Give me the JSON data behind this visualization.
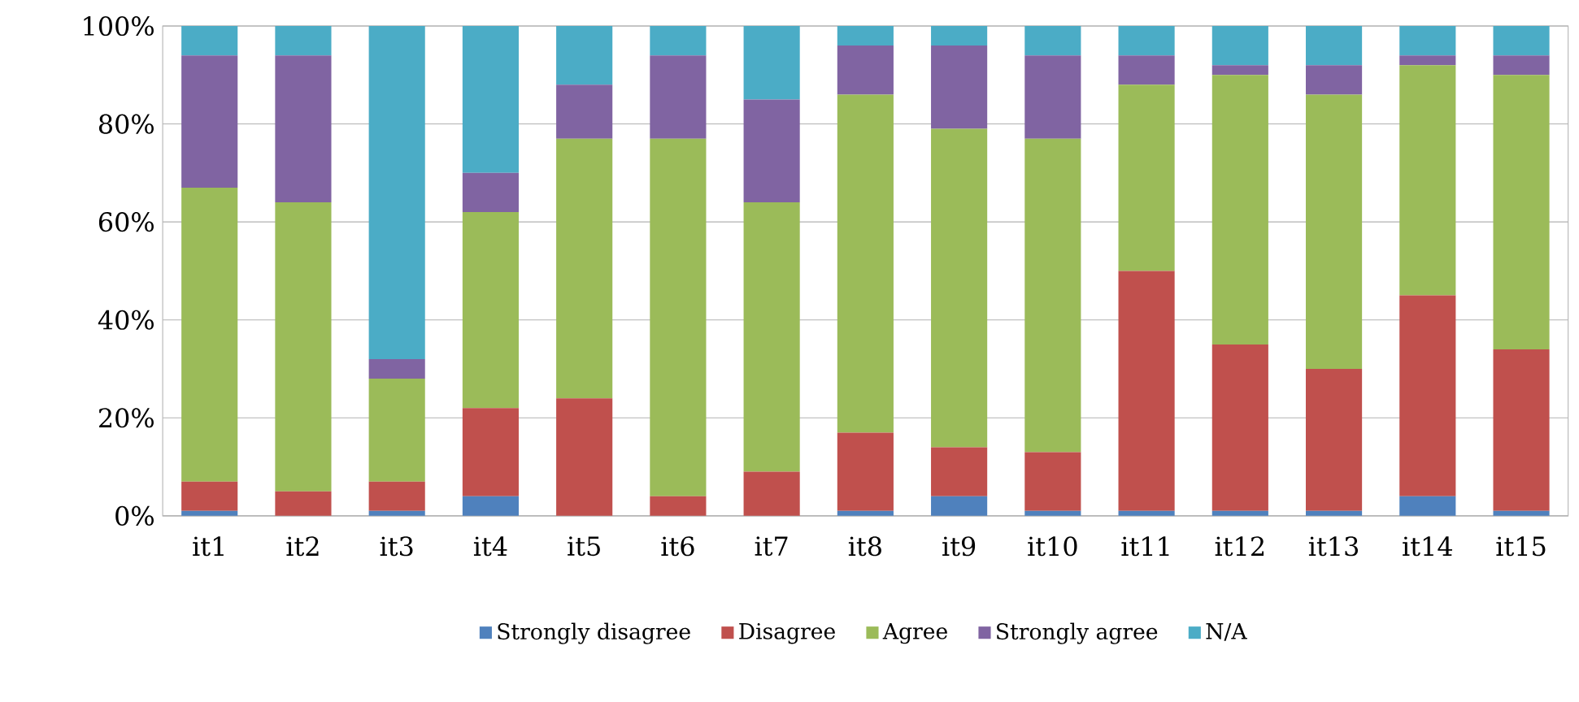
{
  "chart_data": {
    "type": "bar",
    "stacked": true,
    "categories": [
      "it1",
      "it2",
      "it3",
      "it4",
      "it5",
      "it6",
      "it7",
      "it8",
      "it9",
      "it10",
      "it11",
      "it12",
      "it13",
      "it14",
      "it15"
    ],
    "series": [
      {
        "name": "Strongly disagree",
        "color": "#4f81bd",
        "values": [
          1,
          0,
          1,
          4,
          0,
          0,
          0,
          1,
          4,
          1,
          1,
          1,
          1,
          4,
          1
        ]
      },
      {
        "name": "Disagree",
        "color": "#c0504d",
        "values": [
          6,
          5,
          6,
          18,
          24,
          4,
          9,
          16,
          10,
          12,
          49,
          34,
          29,
          41,
          33
        ]
      },
      {
        "name": "Agree",
        "color": "#9bbb59",
        "values": [
          60,
          59,
          21,
          40,
          53,
          73,
          55,
          69,
          65,
          64,
          38,
          55,
          56,
          47,
          56
        ]
      },
      {
        "name": "Strongly agree",
        "color": "#8064a2",
        "values": [
          27,
          30,
          4,
          8,
          11,
          17,
          21,
          10,
          17,
          17,
          6,
          2,
          6,
          2,
          4
        ]
      },
      {
        "name": "N/A",
        "color": "#4bacc6",
        "values": [
          6,
          6,
          68,
          30,
          12,
          6,
          15,
          4,
          4,
          6,
          6,
          8,
          8,
          6,
          6
        ]
      }
    ],
    "ylim": [
      0,
      100
    ],
    "yticks": [
      {
        "value": 0,
        "label": "0%"
      },
      {
        "value": 20,
        "label": "20%"
      },
      {
        "value": 40,
        "label": "40%"
      },
      {
        "value": 60,
        "label": "60%"
      },
      {
        "value": 80,
        "label": "80%"
      },
      {
        "value": 100,
        "label": "100%"
      }
    ],
    "grid": "y",
    "legend": "bottom"
  }
}
